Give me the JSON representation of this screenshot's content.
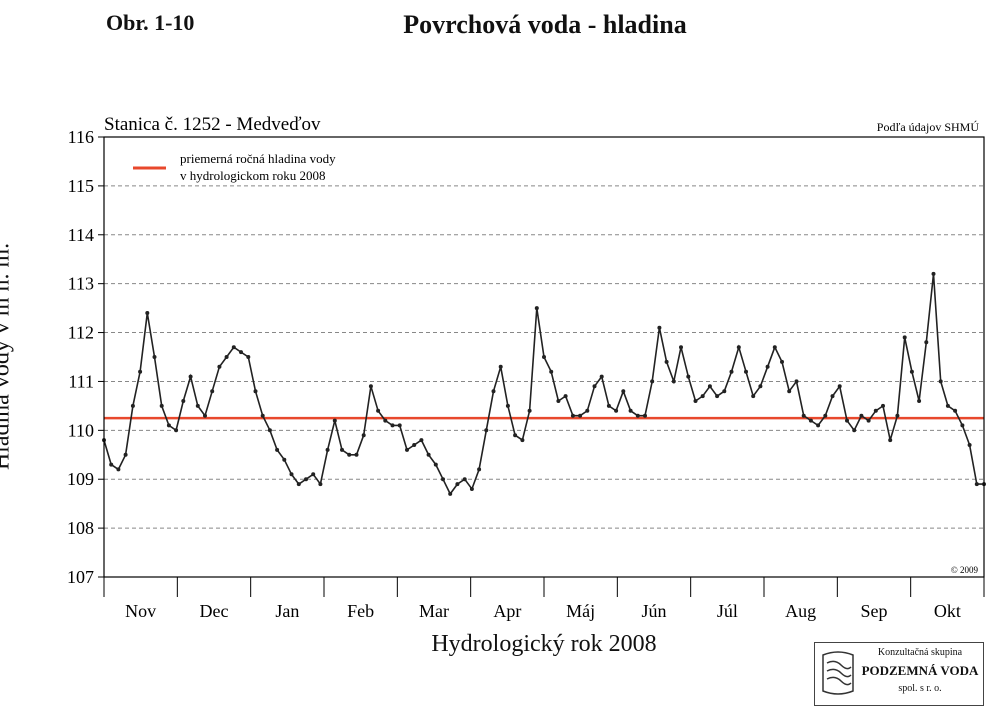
{
  "figure": {
    "label": "Obr. 1-10",
    "title": "Povrchová voda - hladina"
  },
  "company": {
    "line1": "Konzultačná skupina",
    "line2": "PODZEMNÁ VODA",
    "line3": "spol. s r. o."
  },
  "chart_data": {
    "type": "line",
    "station": "Stanica č. 1252 - Medveďov",
    "source": "Podľa údajov SHMÚ",
    "copyright": "© 2009",
    "xlabel": "Hydrologický rok 2008",
    "ylabel": "Hladina vody v m n. m.",
    "ylim": [
      107,
      116
    ],
    "yticks": [
      "107",
      "108",
      "109",
      "110",
      "111",
      "112",
      "113",
      "114",
      "115",
      "116"
    ],
    "months": [
      "Nov",
      "Dec",
      "Jan",
      "Feb",
      "Mar",
      "Apr",
      "Máj",
      "Jún",
      "Júl",
      "Aug",
      "Sep",
      "Okt"
    ],
    "xlim": [
      0,
      366
    ],
    "grid": "horizontal-dashed",
    "legend_position": "top-left",
    "mean": {
      "label1": "priemerná ročná hladina vody",
      "label2": "v hydrologickom roku 2008",
      "value": 110.25,
      "color": "#e8482c"
    },
    "series": [
      {
        "x": [
          0,
          3,
          6,
          9,
          12,
          15,
          18,
          21,
          24,
          27,
          30,
          33,
          36,
          39,
          42,
          45,
          48,
          51,
          54,
          57,
          60,
          63,
          66,
          69,
          72,
          75,
          78,
          81,
          84,
          87,
          90,
          93,
          96,
          99,
          102,
          105,
          108,
          111,
          114,
          117,
          120,
          123,
          126,
          129,
          132,
          135,
          138,
          141,
          144,
          147,
          150,
          153,
          156,
          159,
          162,
          165,
          168,
          171,
          174,
          177,
          180,
          183,
          186,
          189,
          192,
          195,
          198,
          201,
          204,
          207,
          210,
          213,
          216,
          219,
          222,
          225,
          228,
          231,
          234,
          237,
          240,
          243,
          246,
          249,
          252,
          255,
          258,
          261,
          264,
          267,
          270,
          273,
          276,
          279,
          282,
          285,
          288,
          291,
          294,
          297,
          300,
          303,
          306,
          309,
          312,
          315,
          318,
          321,
          324,
          327,
          330,
          333,
          336,
          339,
          342,
          345,
          348,
          351,
          354,
          357,
          360,
          363,
          366
        ],
        "y": [
          109.8,
          109.3,
          109.2,
          109.5,
          110.5,
          111.2,
          112.4,
          111.5,
          110.5,
          110.1,
          110.0,
          110.6,
          111.1,
          110.5,
          110.3,
          110.8,
          111.3,
          111.5,
          111.7,
          111.6,
          111.5,
          110.8,
          110.3,
          110.0,
          109.6,
          109.4,
          109.1,
          108.9,
          109.0,
          109.1,
          108.9,
          109.6,
          110.2,
          109.6,
          109.5,
          109.5,
          109.9,
          110.9,
          110.4,
          110.2,
          110.1,
          110.1,
          109.6,
          109.7,
          109.8,
          109.5,
          109.3,
          109.0,
          108.7,
          108.9,
          109.0,
          108.8,
          109.2,
          110.0,
          110.8,
          111.3,
          110.5,
          109.9,
          109.8,
          110.4,
          112.5,
          111.5,
          111.2,
          110.6,
          110.7,
          110.3,
          110.3,
          110.4,
          110.9,
          111.1,
          110.5,
          110.4,
          110.8,
          110.4,
          110.3,
          110.3,
          111.0,
          112.1,
          111.4,
          111.0,
          111.7,
          111.1,
          110.6,
          110.7,
          110.9,
          110.7,
          110.8,
          111.2,
          111.7,
          111.2,
          110.7,
          110.9,
          111.3,
          111.7,
          111.4,
          110.8,
          111.0,
          110.3,
          110.2,
          110.1,
          110.3,
          110.7,
          110.9,
          110.2,
          110.0,
          110.3,
          110.2,
          110.4,
          110.5,
          109.8,
          110.3,
          111.9,
          111.2,
          110.6,
          111.8,
          113.2,
          111.0,
          110.5,
          110.4,
          110.1,
          109.7,
          108.9,
          108.9
        ]
      }
    ]
  }
}
